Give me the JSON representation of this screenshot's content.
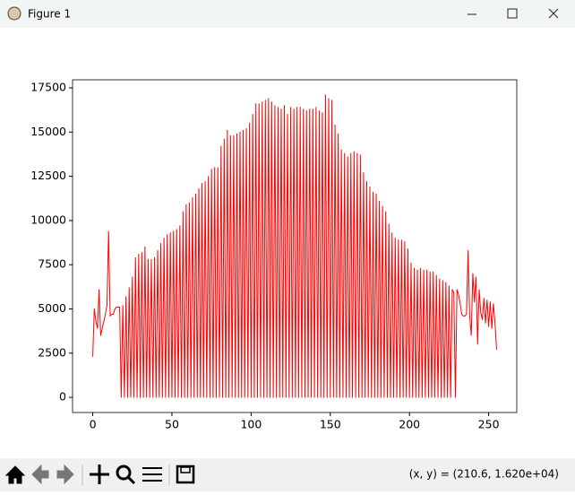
{
  "window": {
    "title": "Figure 1",
    "status": "(x, y) = (210.6, 1.620e+04)"
  },
  "chart_data": {
    "type": "line",
    "color": "#ff0000",
    "xlim": [
      -12.75,
      267.75
    ],
    "ylim": [
      -855,
      17955
    ],
    "xticks": [
      0,
      50,
      100,
      150,
      200,
      250
    ],
    "yticks": [
      0,
      2500,
      5000,
      7500,
      10000,
      12500,
      15000,
      17500
    ],
    "grid": false,
    "x": [
      0,
      1,
      2,
      3,
      4,
      5,
      6,
      7,
      8,
      9,
      10,
      11,
      12,
      13,
      14,
      15,
      16,
      17,
      18,
      19,
      20,
      21,
      22,
      23,
      24,
      25,
      26,
      27,
      28,
      29,
      30,
      31,
      32,
      33,
      34,
      35,
      36,
      37,
      38,
      39,
      40,
      41,
      42,
      43,
      44,
      45,
      46,
      47,
      48,
      49,
      50,
      51,
      52,
      53,
      54,
      55,
      56,
      57,
      58,
      59,
      60,
      61,
      62,
      63,
      64,
      65,
      66,
      67,
      68,
      69,
      70,
      71,
      72,
      73,
      74,
      75,
      76,
      77,
      78,
      79,
      80,
      81,
      82,
      83,
      84,
      85,
      86,
      87,
      88,
      89,
      90,
      91,
      92,
      93,
      94,
      95,
      96,
      97,
      98,
      99,
      100,
      101,
      102,
      103,
      104,
      105,
      106,
      107,
      108,
      109,
      110,
      111,
      112,
      113,
      114,
      115,
      116,
      117,
      118,
      119,
      120,
      121,
      122,
      123,
      124,
      125,
      126,
      127,
      128,
      129,
      130,
      131,
      132,
      133,
      134,
      135,
      136,
      137,
      138,
      139,
      140,
      141,
      142,
      143,
      144,
      145,
      146,
      147,
      148,
      149,
      150,
      151,
      152,
      153,
      154,
      155,
      156,
      157,
      158,
      159,
      160,
      161,
      162,
      163,
      164,
      165,
      166,
      167,
      168,
      169,
      170,
      171,
      172,
      173,
      174,
      175,
      176,
      177,
      178,
      179,
      180,
      181,
      182,
      183,
      184,
      185,
      186,
      187,
      188,
      189,
      190,
      191,
      192,
      193,
      194,
      195,
      196,
      197,
      198,
      199,
      200,
      201,
      202,
      203,
      204,
      205,
      206,
      207,
      208,
      209,
      210,
      211,
      212,
      213,
      214,
      215,
      216,
      217,
      218,
      219,
      220,
      221,
      222,
      223,
      224,
      225,
      226,
      227,
      228,
      229,
      230,
      231,
      232,
      233,
      234,
      235,
      236,
      237,
      238,
      239,
      240,
      241,
      242,
      243,
      244,
      245,
      246,
      247,
      248,
      249,
      250,
      251,
      252,
      253,
      254,
      255
    ],
    "values": [
      2300,
      5000,
      4300,
      3900,
      6100,
      3500,
      3900,
      4300,
      4700,
      5200,
      9400,
      4600,
      4700,
      4700,
      5000,
      5100,
      5100,
      5100,
      0,
      5200,
      0,
      5700,
      0,
      6200,
      0,
      6800,
      0,
      7900,
      0,
      8100,
      0,
      8200,
      0,
      8500,
      0,
      7800,
      0,
      7800,
      0,
      7900,
      0,
      8300,
      0,
      8700,
      0,
      9000,
      0,
      9200,
      0,
      9300,
      0,
      9400,
      0,
      9500,
      0,
      9700,
      0,
      10500,
      0,
      10900,
      0,
      11000,
      0,
      11300,
      0,
      11500,
      0,
      11800,
      0,
      12100,
      0,
      12200,
      0,
      12500,
      0,
      12900,
      0,
      13000,
      0,
      13000,
      0,
      14200,
      0,
      14600,
      0,
      15100,
      0,
      14800,
      0,
      14800,
      0,
      14900,
      0,
      15000,
      0,
      15100,
      0,
      15200,
      0,
      15500,
      0,
      16000,
      0,
      16600,
      0,
      16600,
      0,
      16700,
      0,
      16800,
      0,
      16900,
      0,
      16700,
      0,
      16500,
      0,
      16400,
      0,
      16300,
      0,
      16500,
      0,
      16000,
      0,
      16400,
      0,
      16300,
      0,
      16400,
      0,
      16400,
      0,
      16300,
      0,
      16200,
      0,
      16300,
      0,
      16300,
      0,
      16400,
      0,
      16200,
      0,
      16100,
      0,
      17100,
      0,
      16900,
      0,
      16800,
      0,
      15400,
      0,
      14900,
      0,
      14000,
      0,
      13800,
      0,
      13600,
      0,
      13800,
      0,
      13900,
      0,
      13800,
      0,
      13700,
      0,
      12700,
      0,
      12200,
      0,
      11900,
      0,
      11600,
      0,
      11500,
      0,
      11100,
      0,
      10800,
      0,
      10500,
      0,
      9800,
      0,
      9300,
      0,
      9000,
      0,
      8900,
      0,
      8900,
      0,
      8800,
      0,
      8400,
      0,
      7600,
      0,
      7300,
      0,
      7200,
      0,
      7300,
      0,
      7200,
      0,
      7200,
      0,
      7100,
      0,
      7100,
      0,
      6900,
      0,
      6700,
      0,
      6600,
      0,
      6500,
      0,
      6300,
      0,
      6100,
      5900,
      0,
      6100,
      5800,
      5300,
      4700,
      4600,
      4600,
      4700,
      8300,
      4600,
      3500,
      7000,
      5400,
      6800,
      3000,
      6100,
      4800,
      4400,
      5600,
      4200,
      5500,
      4000,
      5400,
      3900,
      5300,
      4200,
      2700
    ]
  }
}
